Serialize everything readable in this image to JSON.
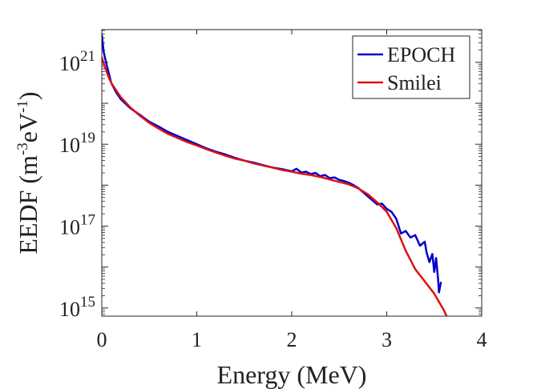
{
  "chart_data": {
    "type": "line",
    "xlabel": "Energy (MeV)",
    "ylabel": {
      "base": "EEDF (m",
      "exp1": "-3",
      "mid": "eV",
      "exp2": "-1",
      "end": ")"
    },
    "xlim": [
      0,
      4
    ],
    "ylim_log10": [
      14.8,
      21.8
    ],
    "xticks": [
      {
        "value": 0,
        "label": "0"
      },
      {
        "value": 1,
        "label": "1"
      },
      {
        "value": 2,
        "label": "2"
      },
      {
        "value": 3,
        "label": "3"
      },
      {
        "value": 4,
        "label": "4"
      }
    ],
    "yticks": [
      {
        "exp": 15,
        "base": "10",
        "sup": "15"
      },
      {
        "exp": 17,
        "base": "10",
        "sup": "17"
      },
      {
        "exp": 19,
        "base": "10",
        "sup": "19"
      },
      {
        "exp": 21,
        "base": "10",
        "sup": "21"
      }
    ],
    "legend_position": "top-right",
    "series": [
      {
        "name": "EPOCH",
        "color": "#0000cc",
        "points": [
          [
            0.0,
            21.68
          ],
          [
            0.02,
            21.25
          ],
          [
            0.05,
            20.95
          ],
          [
            0.1,
            20.5
          ],
          [
            0.15,
            20.27
          ],
          [
            0.2,
            20.1
          ],
          [
            0.3,
            19.88
          ],
          [
            0.4,
            19.72
          ],
          [
            0.5,
            19.55
          ],
          [
            0.6,
            19.43
          ],
          [
            0.7,
            19.3
          ],
          [
            0.8,
            19.2
          ],
          [
            0.9,
            19.1
          ],
          [
            1.0,
            19.0
          ],
          [
            1.1,
            18.9
          ],
          [
            1.2,
            18.82
          ],
          [
            1.3,
            18.75
          ],
          [
            1.4,
            18.67
          ],
          [
            1.5,
            18.6
          ],
          [
            1.6,
            18.55
          ],
          [
            1.7,
            18.49
          ],
          [
            1.8,
            18.43
          ],
          [
            1.9,
            18.39
          ],
          [
            2.0,
            18.34
          ],
          [
            2.05,
            18.4
          ],
          [
            2.1,
            18.31
          ],
          [
            2.15,
            18.33
          ],
          [
            2.2,
            18.27
          ],
          [
            2.25,
            18.3
          ],
          [
            2.3,
            18.22
          ],
          [
            2.35,
            18.25
          ],
          [
            2.4,
            18.17
          ],
          [
            2.45,
            18.19
          ],
          [
            2.5,
            18.13
          ],
          [
            2.55,
            18.1
          ],
          [
            2.6,
            18.06
          ],
          [
            2.65,
            18.0
          ],
          [
            2.7,
            17.93
          ],
          [
            2.75,
            17.83
          ],
          [
            2.8,
            17.73
          ],
          [
            2.85,
            17.63
          ],
          [
            2.9,
            17.53
          ],
          [
            2.95,
            17.55
          ],
          [
            3.0,
            17.42
          ],
          [
            3.05,
            17.35
          ],
          [
            3.1,
            17.18
          ],
          [
            3.15,
            16.82
          ],
          [
            3.2,
            16.88
          ],
          [
            3.25,
            16.72
          ],
          [
            3.3,
            16.78
          ],
          [
            3.35,
            16.52
          ],
          [
            3.4,
            16.62
          ],
          [
            3.42,
            16.35
          ],
          [
            3.45,
            16.12
          ],
          [
            3.48,
            16.32
          ],
          [
            3.5,
            15.88
          ],
          [
            3.52,
            16.22
          ],
          [
            3.54,
            15.72
          ],
          [
            3.55,
            15.38
          ],
          [
            3.57,
            15.62
          ]
        ]
      },
      {
        "name": "Smilei",
        "color": "#dd1111",
        "points": [
          [
            0.0,
            21.12
          ],
          [
            0.03,
            20.9
          ],
          [
            0.07,
            20.65
          ],
          [
            0.1,
            20.5
          ],
          [
            0.15,
            20.32
          ],
          [
            0.2,
            20.15
          ],
          [
            0.3,
            19.9
          ],
          [
            0.4,
            19.7
          ],
          [
            0.5,
            19.52
          ],
          [
            0.6,
            19.38
          ],
          [
            0.7,
            19.25
          ],
          [
            0.8,
            19.15
          ],
          [
            0.9,
            19.05
          ],
          [
            1.0,
            18.97
          ],
          [
            1.1,
            18.88
          ],
          [
            1.2,
            18.8
          ],
          [
            1.3,
            18.72
          ],
          [
            1.4,
            18.65
          ],
          [
            1.5,
            18.6
          ],
          [
            1.6,
            18.53
          ],
          [
            1.7,
            18.48
          ],
          [
            1.8,
            18.43
          ],
          [
            1.9,
            18.37
          ],
          [
            2.0,
            18.33
          ],
          [
            2.1,
            18.28
          ],
          [
            2.2,
            18.25
          ],
          [
            2.3,
            18.2
          ],
          [
            2.4,
            18.14
          ],
          [
            2.5,
            18.08
          ],
          [
            2.6,
            18.02
          ],
          [
            2.7,
            17.92
          ],
          [
            2.8,
            17.78
          ],
          [
            2.9,
            17.58
          ],
          [
            3.0,
            17.35
          ],
          [
            3.1,
            16.95
          ],
          [
            3.2,
            16.4
          ],
          [
            3.3,
            15.95
          ],
          [
            3.4,
            15.65
          ],
          [
            3.5,
            15.35
          ],
          [
            3.6,
            14.95
          ],
          [
            3.63,
            14.8
          ]
        ]
      }
    ]
  }
}
